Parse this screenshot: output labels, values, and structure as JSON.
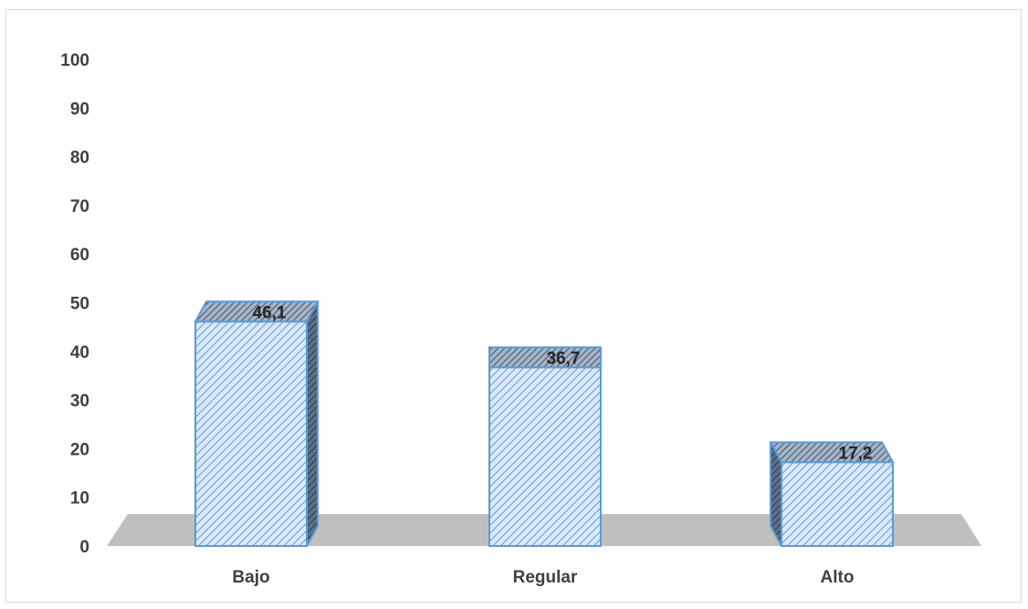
{
  "chart_data": {
    "type": "bar",
    "style": "3d-column",
    "categories": [
      "Bajo",
      "Regular",
      "Alto"
    ],
    "values": [
      46.1,
      36.7,
      17.2
    ],
    "data_labels": [
      "46,1",
      "36,7",
      "17,2"
    ],
    "ylim": [
      0,
      100
    ],
    "yticks": [
      0,
      10,
      20,
      30,
      40,
      50,
      60,
      70,
      80,
      90,
      100
    ],
    "ytick_labels": [
      "0",
      "10",
      "20",
      "30",
      "40",
      "50",
      "60",
      "70",
      "80",
      "90",
      "100"
    ],
    "title": "",
    "xlabel": "",
    "ylabel": "",
    "grid": false,
    "legend": "none",
    "colors": {
      "bar_fill": "#dbe8f7",
      "bar_hatch": "#5b9bd5",
      "bar_border": "#5b9bd5",
      "bar_top": "#8497b0",
      "bar_side": "#44546a",
      "floor": "#bfbfbf"
    }
  }
}
